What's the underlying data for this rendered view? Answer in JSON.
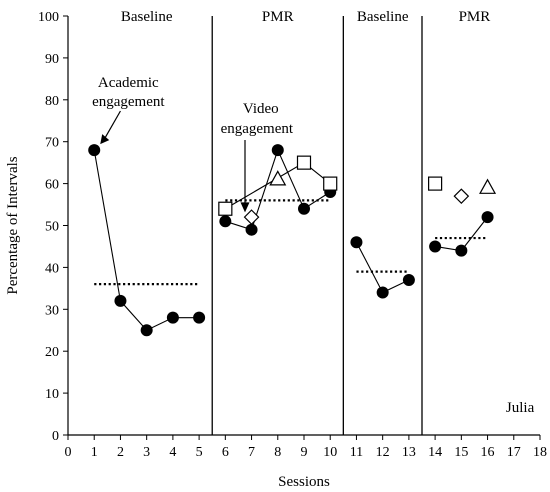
{
  "chart_data": {
    "type": "line",
    "title": "",
    "xlabel": "Sessions",
    "ylabel": "Percentage of Intervals",
    "xlim": [
      0,
      18
    ],
    "ylim": [
      0,
      100
    ],
    "x_ticks": [
      0,
      1,
      2,
      3,
      4,
      5,
      6,
      7,
      8,
      9,
      10,
      11,
      12,
      13,
      14,
      15,
      16,
      17,
      18
    ],
    "y_ticks": [
      0,
      10,
      20,
      30,
      40,
      50,
      60,
      70,
      80,
      90,
      100
    ],
    "participant": "Julia",
    "phase_changes": [
      5.5,
      10.5,
      13.5
    ],
    "phases": [
      {
        "label": "Baseline",
        "center": 3
      },
      {
        "label": "PMR",
        "center": 8
      },
      {
        "label": "Baseline",
        "center": 12
      },
      {
        "label": "PMR",
        "center": 15.5
      }
    ],
    "annotations": [
      {
        "lines": [
          "Academic",
          "engagement"
        ]
      },
      {
        "lines": [
          "Video",
          "engagement"
        ]
      }
    ],
    "series": [
      {
        "marker": "filled-circle",
        "segments": [
          [
            [
              1,
              68
            ],
            [
              2,
              32
            ],
            [
              3,
              25
            ],
            [
              4,
              28
            ],
            [
              5,
              28
            ]
          ],
          [
            [
              6,
              51
            ],
            [
              7,
              49
            ],
            [
              8,
              68
            ],
            [
              9,
              54
            ],
            [
              10,
              58
            ]
          ],
          [
            [
              11,
              46
            ],
            [
              12,
              34
            ],
            [
              13,
              37
            ]
          ],
          [
            [
              14,
              45
            ],
            [
              15,
              44
            ],
            [
              16,
              52
            ]
          ]
        ]
      },
      {
        "marker": "open-square",
        "segments": [
          [
            [
              6,
              54
            ],
            [
              9,
              65
            ],
            [
              10,
              60
            ]
          ],
          [
            [
              14,
              60
            ]
          ]
        ]
      },
      {
        "marker": "open-diamond",
        "segments": [
          [
            [
              7,
              52
            ]
          ],
          [
            [
              15,
              57
            ]
          ]
        ]
      },
      {
        "marker": "open-triangle",
        "segments": [
          [
            [
              8,
              61
            ]
          ],
          [
            [
              16,
              59
            ]
          ]
        ]
      }
    ],
    "mean_lines": [
      {
        "x": [
          1,
          5
        ],
        "y": 36
      },
      {
        "x": [
          6,
          10
        ],
        "y": 56
      },
      {
        "x": [
          11,
          13
        ],
        "y": 39
      },
      {
        "x": [
          14,
          16
        ],
        "y": 47
      }
    ]
  }
}
